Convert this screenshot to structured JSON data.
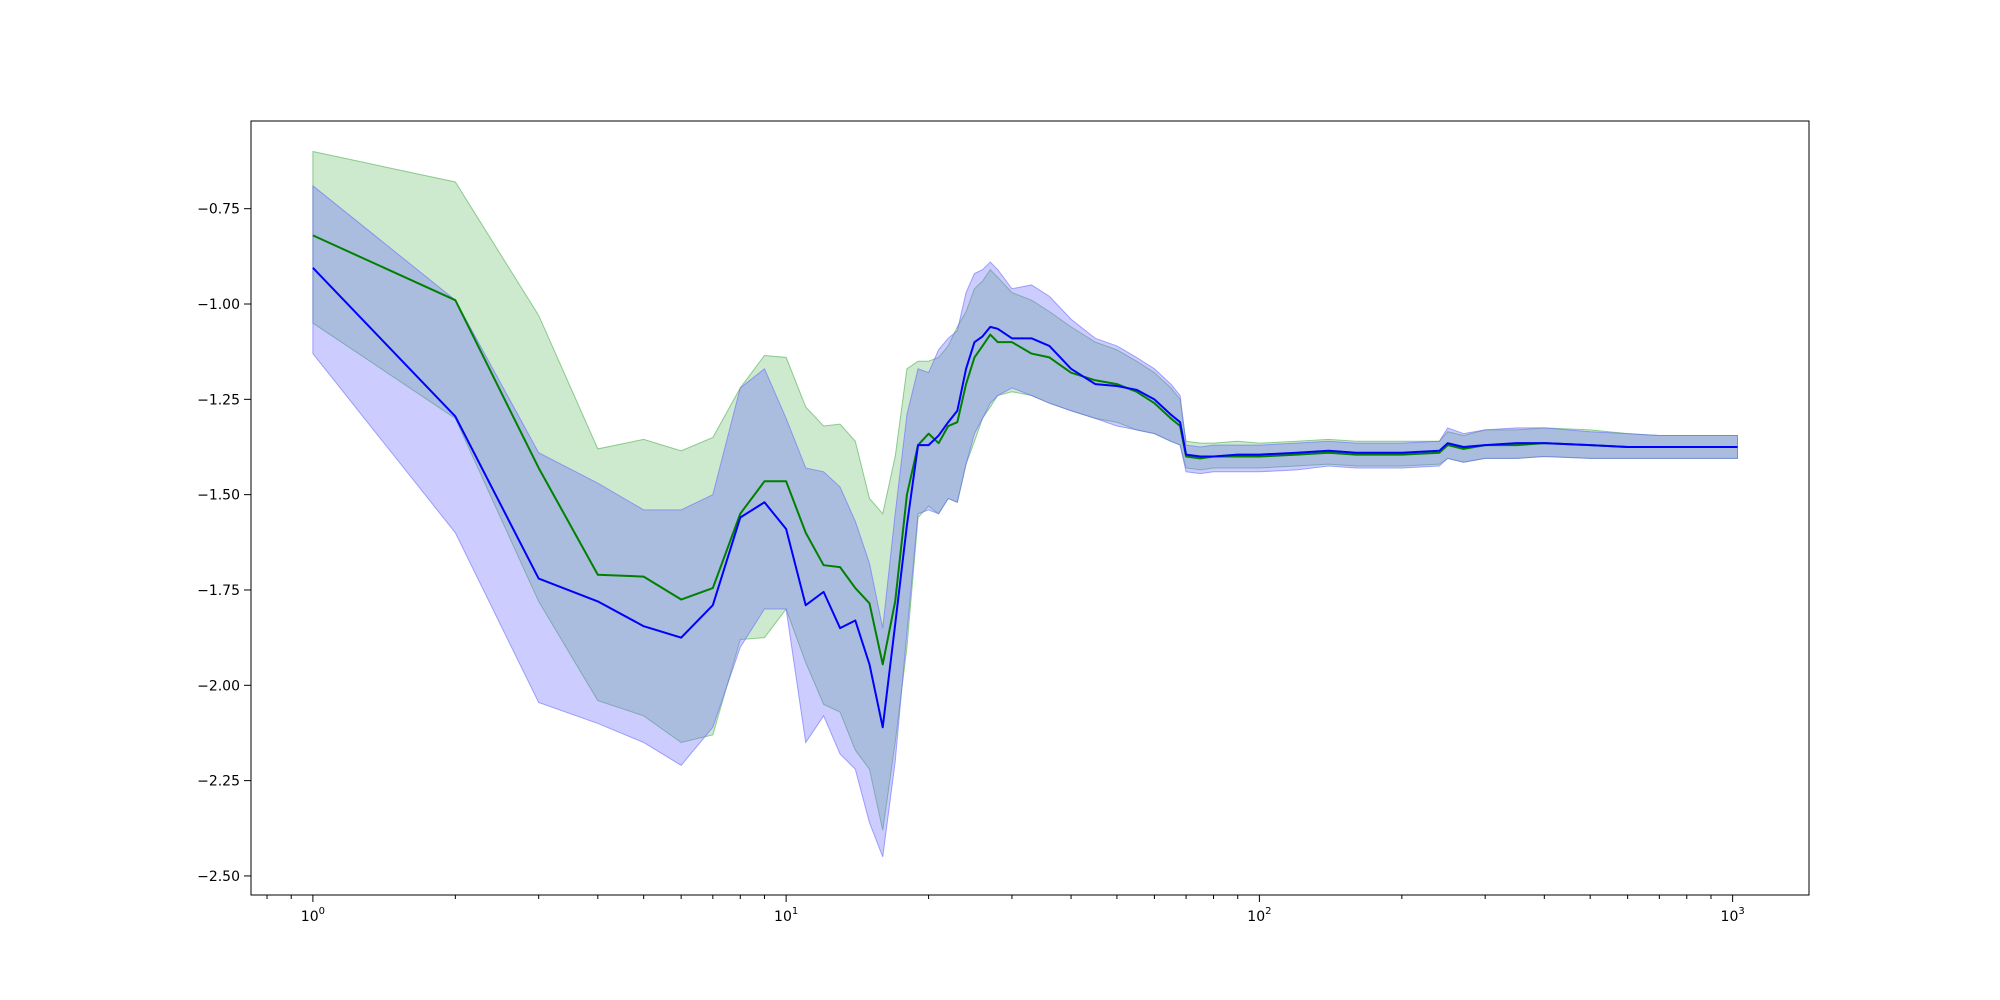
{
  "chart_data": {
    "type": "line",
    "title": "",
    "xlabel": "",
    "ylabel": "",
    "xscale": "log",
    "xlim": [
      0.74,
      1450
    ],
    "ylim": [
      -2.55,
      -0.52
    ],
    "grid": false,
    "x_ticks": [
      {
        "value": 1,
        "base": "10",
        "exp": "0"
      },
      {
        "value": 10,
        "base": "10",
        "exp": "1"
      },
      {
        "value": 100,
        "base": "10",
        "exp": "2"
      },
      {
        "value": 1000,
        "base": "10",
        "exp": "3"
      }
    ],
    "y_ticks": [
      {
        "value": -0.75,
        "label": "−0.75"
      },
      {
        "value": -1.0,
        "label": "−1.00"
      },
      {
        "value": -1.25,
        "label": "−1.25"
      },
      {
        "value": -1.5,
        "label": "−1.50"
      },
      {
        "value": -1.75,
        "label": "−1.75"
      },
      {
        "value": -2.0,
        "label": "−2.00"
      },
      {
        "value": -2.25,
        "label": "−2.25"
      },
      {
        "value": -2.5,
        "label": "−2.50"
      }
    ],
    "series": [
      {
        "color": "#008000",
        "band_color": "#4caf50",
        "band_opacity": 0.28,
        "x": [
          1,
          2,
          3,
          4,
          5,
          6,
          7,
          8,
          9,
          10,
          11,
          12,
          13,
          14,
          15,
          16,
          17,
          18,
          19,
          20,
          21,
          22,
          23,
          24,
          25,
          26,
          27,
          28,
          30,
          33,
          36,
          40,
          45,
          50,
          55,
          60,
          65,
          68,
          70,
          75,
          80,
          90,
          100,
          120,
          140,
          160,
          200,
          240,
          250,
          270,
          300,
          350,
          400,
          500,
          600,
          700,
          800,
          1000,
          1024
        ],
        "y": [
          -0.82,
          -0.99,
          -1.43,
          -1.71,
          -1.715,
          -1.775,
          -1.745,
          -1.55,
          -1.465,
          -1.465,
          -1.6,
          -1.685,
          -1.69,
          -1.745,
          -1.785,
          -1.945,
          -1.78,
          -1.5,
          -1.37,
          -1.34,
          -1.365,
          -1.32,
          -1.31,
          -1.21,
          -1.14,
          -1.11,
          -1.08,
          -1.1,
          -1.1,
          -1.13,
          -1.14,
          -1.18,
          -1.2,
          -1.21,
          -1.23,
          -1.26,
          -1.3,
          -1.32,
          -1.4,
          -1.405,
          -1.4,
          -1.4,
          -1.4,
          -1.395,
          -1.39,
          -1.395,
          -1.395,
          -1.39,
          -1.37,
          -1.38,
          -1.37,
          -1.37,
          -1.365,
          -1.37,
          -1.375,
          -1.375,
          -1.375,
          -1.375,
          -1.375
        ],
        "upper": [
          -0.6,
          -0.68,
          -1.03,
          -1.38,
          -1.355,
          -1.385,
          -1.35,
          -1.22,
          -1.135,
          -1.14,
          -1.27,
          -1.32,
          -1.315,
          -1.36,
          -1.51,
          -1.55,
          -1.4,
          -1.17,
          -1.15,
          -1.15,
          -1.14,
          -1.11,
          -1.06,
          -1.02,
          -0.96,
          -0.94,
          -0.91,
          -0.93,
          -0.97,
          -0.99,
          -1.02,
          -1.06,
          -1.1,
          -1.12,
          -1.15,
          -1.18,
          -1.22,
          -1.25,
          -1.36,
          -1.365,
          -1.365,
          -1.36,
          -1.365,
          -1.36,
          -1.355,
          -1.36,
          -1.36,
          -1.36,
          -1.335,
          -1.345,
          -1.33,
          -1.33,
          -1.325,
          -1.33,
          -1.34,
          -1.345,
          -1.345,
          -1.345,
          -1.345
        ],
        "lower": [
          -1.05,
          -1.3,
          -1.78,
          -2.04,
          -2.08,
          -2.15,
          -2.13,
          -1.88,
          -1.875,
          -1.8,
          -1.94,
          -2.05,
          -2.07,
          -2.17,
          -2.22,
          -2.38,
          -2.15,
          -1.9,
          -1.56,
          -1.53,
          -1.55,
          -1.51,
          -1.52,
          -1.42,
          -1.36,
          -1.3,
          -1.27,
          -1.24,
          -1.23,
          -1.24,
          -1.26,
          -1.28,
          -1.3,
          -1.31,
          -1.33,
          -1.34,
          -1.36,
          -1.37,
          -1.43,
          -1.435,
          -1.43,
          -1.43,
          -1.43,
          -1.425,
          -1.42,
          -1.425,
          -1.425,
          -1.42,
          -1.405,
          -1.415,
          -1.405,
          -1.405,
          -1.4,
          -1.405,
          -1.405,
          -1.405,
          -1.405,
          -1.405,
          -1.405
        ]
      },
      {
        "color": "#0000ff",
        "band_color": "#6a6aff",
        "band_opacity": 0.34,
        "x": [
          1,
          2,
          3,
          4,
          5,
          6,
          7,
          8,
          9,
          10,
          11,
          12,
          13,
          14,
          15,
          16,
          17,
          18,
          19,
          20,
          21,
          22,
          23,
          24,
          25,
          26,
          27,
          28,
          30,
          33,
          36,
          40,
          45,
          50,
          55,
          60,
          65,
          68,
          70,
          75,
          80,
          90,
          100,
          120,
          140,
          160,
          200,
          240,
          250,
          270,
          300,
          350,
          400,
          500,
          600,
          700,
          800,
          1000,
          1024
        ],
        "y": [
          -0.905,
          -1.295,
          -1.72,
          -1.78,
          -1.845,
          -1.875,
          -1.79,
          -1.56,
          -1.52,
          -1.59,
          -1.79,
          -1.755,
          -1.85,
          -1.83,
          -1.945,
          -2.11,
          -1.84,
          -1.58,
          -1.37,
          -1.37,
          -1.345,
          -1.31,
          -1.28,
          -1.17,
          -1.1,
          -1.085,
          -1.06,
          -1.065,
          -1.09,
          -1.09,
          -1.11,
          -1.17,
          -1.21,
          -1.215,
          -1.225,
          -1.25,
          -1.29,
          -1.31,
          -1.395,
          -1.4,
          -1.4,
          -1.395,
          -1.395,
          -1.39,
          -1.385,
          -1.39,
          -1.39,
          -1.385,
          -1.365,
          -1.375,
          -1.37,
          -1.365,
          -1.365,
          -1.37,
          -1.375,
          -1.375,
          -1.375,
          -1.375,
          -1.375
        ],
        "upper": [
          -0.69,
          -0.99,
          -1.39,
          -1.47,
          -1.54,
          -1.54,
          -1.5,
          -1.22,
          -1.17,
          -1.3,
          -1.43,
          -1.44,
          -1.48,
          -1.57,
          -1.68,
          -1.85,
          -1.55,
          -1.29,
          -1.17,
          -1.18,
          -1.12,
          -1.09,
          -1.07,
          -0.97,
          -0.92,
          -0.91,
          -0.89,
          -0.91,
          -0.96,
          -0.95,
          -0.98,
          -1.04,
          -1.09,
          -1.11,
          -1.14,
          -1.17,
          -1.21,
          -1.24,
          -1.37,
          -1.375,
          -1.37,
          -1.37,
          -1.37,
          -1.365,
          -1.36,
          -1.365,
          -1.365,
          -1.36,
          -1.325,
          -1.34,
          -1.33,
          -1.325,
          -1.325,
          -1.335,
          -1.34,
          -1.345,
          -1.345,
          -1.345,
          -1.345
        ],
        "lower": [
          -1.13,
          -1.6,
          -2.045,
          -2.1,
          -2.15,
          -2.21,
          -2.11,
          -1.9,
          -1.8,
          -1.8,
          -2.15,
          -2.08,
          -2.18,
          -2.22,
          -2.36,
          -2.45,
          -2.2,
          -1.86,
          -1.55,
          -1.54,
          -1.55,
          -1.51,
          -1.52,
          -1.42,
          -1.34,
          -1.3,
          -1.26,
          -1.24,
          -1.22,
          -1.24,
          -1.26,
          -1.28,
          -1.3,
          -1.32,
          -1.33,
          -1.34,
          -1.36,
          -1.37,
          -1.44,
          -1.445,
          -1.44,
          -1.44,
          -1.44,
          -1.435,
          -1.425,
          -1.43,
          -1.43,
          -1.425,
          -1.405,
          -1.415,
          -1.405,
          -1.405,
          -1.4,
          -1.405,
          -1.405,
          -1.405,
          -1.405,
          -1.405,
          -1.405
        ]
      }
    ]
  }
}
